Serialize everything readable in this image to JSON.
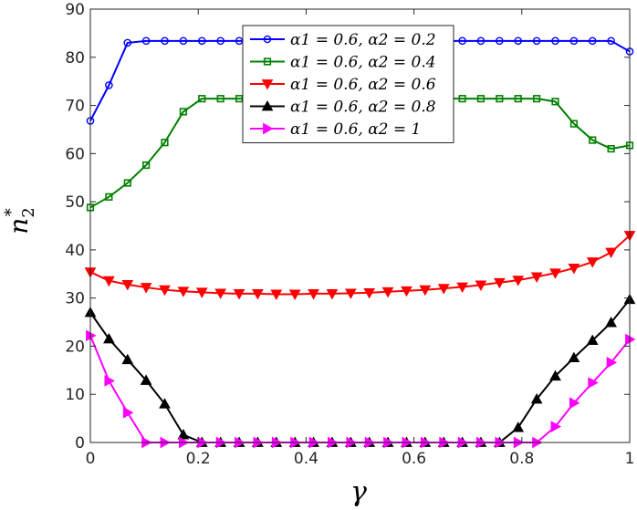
{
  "chart_data": {
    "type": "line",
    "xlabel": "γ",
    "ylabel_base": "n",
    "ylabel_sub": "2",
    "ylabel_sup": "*",
    "xlim": [
      0,
      1
    ],
    "ylim": [
      0,
      90
    ],
    "xticks": [
      0,
      0.2,
      0.4,
      0.6,
      0.8,
      1
    ],
    "xtick_labels": [
      "0",
      "0.2",
      "0.4",
      "0.6",
      "0.8",
      "1"
    ],
    "yticks": [
      0,
      10,
      20,
      30,
      40,
      50,
      60,
      70,
      80,
      90
    ],
    "ytick_labels": [
      "0",
      "10",
      "20",
      "30",
      "40",
      "50",
      "60",
      "70",
      "80",
      "90"
    ],
    "grid": false,
    "legend_position": "top-center",
    "x": [
      0,
      0.0345,
      0.069,
      0.1034,
      0.1379,
      0.1724,
      0.2069,
      0.2414,
      0.2759,
      0.3103,
      0.3448,
      0.3793,
      0.4138,
      0.4483,
      0.4828,
      0.5172,
      0.5517,
      0.5862,
      0.6207,
      0.6552,
      0.6897,
      0.7241,
      0.7586,
      0.7931,
      0.8276,
      0.8621,
      0.8966,
      0.931,
      0.9655,
      1
    ],
    "series": [
      {
        "name": "α1 = 0.6, α2 = 0.2",
        "color": "#0000ff",
        "marker": "circle",
        "values": [
          66.8,
          74.2,
          83.0,
          83.4,
          83.4,
          83.4,
          83.4,
          83.4,
          83.4,
          83.4,
          83.4,
          83.4,
          83.4,
          83.4,
          83.4,
          83.4,
          83.4,
          83.4,
          83.4,
          83.4,
          83.4,
          83.4,
          83.4,
          83.4,
          83.4,
          83.4,
          83.4,
          83.4,
          83.4,
          81.2
        ]
      },
      {
        "name": "α1 = 0.6, α2 = 0.4",
        "color": "#008000",
        "marker": "square",
        "values": [
          48.8,
          51.0,
          53.9,
          57.6,
          62.3,
          68.7,
          71.4,
          71.4,
          71.4,
          71.4,
          71.4,
          71.4,
          71.4,
          71.4,
          71.4,
          71.4,
          71.4,
          71.4,
          71.4,
          71.4,
          71.4,
          71.4,
          71.4,
          71.4,
          71.4,
          70.8,
          66.2,
          62.8,
          61.0,
          61.7
        ]
      },
      {
        "name": "α1 = 0.6, α2 = 0.6",
        "color": "#ff0000",
        "marker": "triangle-down",
        "values": [
          35.4,
          33.6,
          32.8,
          32.2,
          31.7,
          31.4,
          31.2,
          31.0,
          30.9,
          30.9,
          30.8,
          30.8,
          30.9,
          30.9,
          31.0,
          31.1,
          31.3,
          31.5,
          31.7,
          32.0,
          32.3,
          32.7,
          33.2,
          33.7,
          34.4,
          35.2,
          36.2,
          37.5,
          39.5,
          43.0
        ]
      },
      {
        "name": "α1 = 0.6, α2 = 0.8",
        "color": "#000000",
        "marker": "triangle-up",
        "values": [
          27.0,
          21.5,
          17.2,
          12.9,
          8.0,
          1.6,
          0,
          0,
          0,
          0,
          0,
          0,
          0,
          0,
          0,
          0,
          0,
          0,
          0,
          0,
          0,
          0,
          0,
          3.1,
          9.0,
          13.8,
          17.6,
          21.2,
          24.9,
          29.7
        ]
      },
      {
        "name": "α1 = 0.6, α2 = 1",
        "color": "#ff00ff",
        "marker": "triangle-right",
        "values": [
          22.2,
          12.8,
          6.2,
          0,
          0,
          0,
          0,
          0,
          0,
          0,
          0,
          0,
          0,
          0,
          0,
          0,
          0,
          0,
          0,
          0,
          0,
          0,
          0,
          0,
          0,
          3.3,
          8.2,
          12.4,
          16.6,
          21.4
        ]
      }
    ]
  }
}
